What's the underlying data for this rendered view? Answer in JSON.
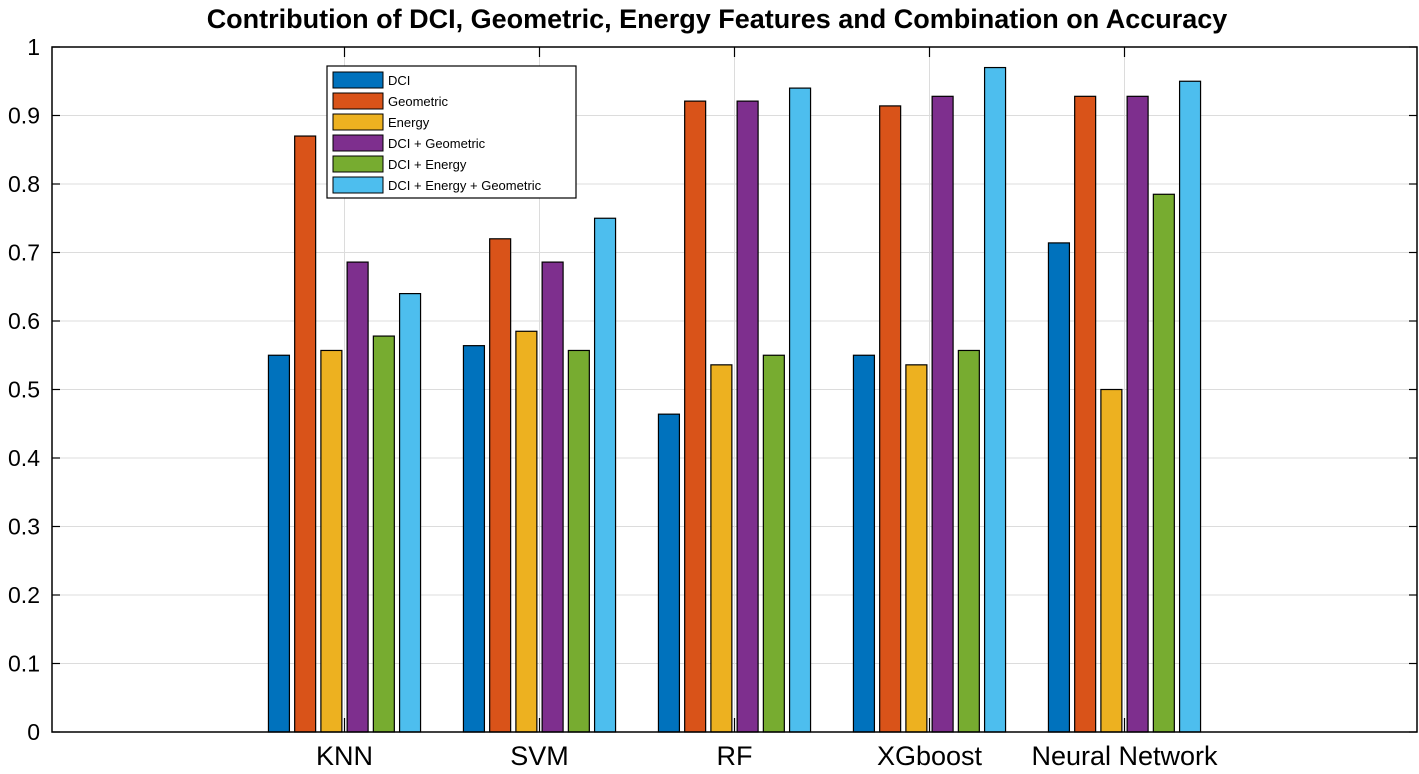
{
  "chart_data": {
    "type": "bar",
    "title": "Contribution of DCI, Geometric, Energy Features and Combination on Accuracy",
    "xlabel": "",
    "ylabel": "",
    "ylim": [
      0,
      1
    ],
    "yticks": [
      "0",
      "0.1",
      "0.2",
      "0.3",
      "0.4",
      "0.5",
      "0.6",
      "0.7",
      "0.8",
      "0.9",
      "1"
    ],
    "grid": true,
    "legend_position": "top-left",
    "categories": [
      "KNN",
      "SVM",
      "RF",
      "XGboost",
      "Neural Network"
    ],
    "series": [
      {
        "name": "DCI",
        "color": "#0072BD",
        "values": [
          0.55,
          0.564,
          0.464,
          0.55,
          0.714
        ]
      },
      {
        "name": "Geometric",
        "color": "#D95319",
        "values": [
          0.87,
          0.72,
          0.921,
          0.914,
          0.928
        ]
      },
      {
        "name": "Energy",
        "color": "#EDB120",
        "values": [
          0.557,
          0.585,
          0.536,
          0.536,
          0.5
        ]
      },
      {
        "name": "DCI + Geometric",
        "color": "#7E2F8E",
        "values": [
          0.686,
          0.686,
          0.921,
          0.928,
          0.928
        ]
      },
      {
        "name": "DCI + Energy",
        "color": "#77AC30",
        "values": [
          0.578,
          0.557,
          0.55,
          0.557,
          0.785
        ]
      },
      {
        "name": "DCI + Energy + Geometric",
        "color": "#4DBEEE",
        "values": [
          0.64,
          0.75,
          0.94,
          0.97,
          0.95
        ]
      }
    ]
  }
}
